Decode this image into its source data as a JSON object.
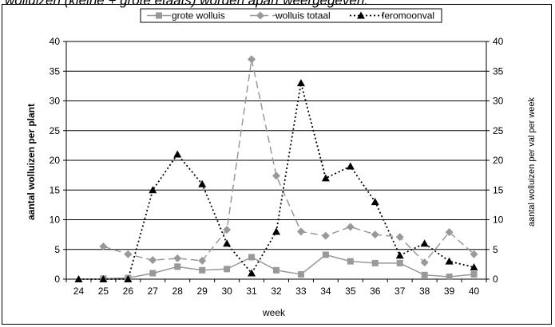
{
  "caption": "wolluizen (kleine + grote etaats) worden apart weergegeven.",
  "chart_data": {
    "type": "line",
    "xlabel": "week",
    "ylabel_left": "aantal wolluizen per plant",
    "ylabel_right": "aantal wolluizen per val per week",
    "x": [
      24,
      25,
      26,
      27,
      28,
      29,
      30,
      31,
      32,
      33,
      34,
      35,
      36,
      37,
      38,
      39,
      40
    ],
    "ylim_left": [
      0,
      40
    ],
    "ylim_right": [
      0,
      40
    ],
    "yticks_left": [
      0,
      5,
      10,
      15,
      20,
      25,
      30,
      35,
      40
    ],
    "yticks_right": [
      0,
      5,
      10,
      15,
      20,
      25,
      30,
      35,
      40
    ],
    "grid": "horizontal",
    "legend_position": "top",
    "series": [
      {
        "name": "grote wolluis",
        "axis": "left",
        "color": "#999999",
        "marker": "square",
        "dash": "solid",
        "values": [
          null,
          0.1,
          0.2,
          1.0,
          2.1,
          1.5,
          1.7,
          3.7,
          1.5,
          0.8,
          4.1,
          3.0,
          2.7,
          2.7,
          0.7,
          0.4,
          0.8
        ]
      },
      {
        "name": "wolluis totaal",
        "axis": "left",
        "color": "#999999",
        "marker": "diamond",
        "dash": "long-dash",
        "values": [
          null,
          5.5,
          4.2,
          3.2,
          3.5,
          3.1,
          8.3,
          37.0,
          17.4,
          8.0,
          7.3,
          8.8,
          7.5,
          7.1,
          2.8,
          7.9,
          4.2
        ]
      },
      {
        "name": "feromoonval",
        "axis": "right",
        "color": "#000000",
        "marker": "triangle",
        "dash": "dotted",
        "values": [
          0,
          0,
          0,
          15,
          21,
          16,
          6,
          1,
          8,
          33,
          17,
          19,
          13,
          4,
          6,
          3,
          2
        ]
      }
    ]
  }
}
